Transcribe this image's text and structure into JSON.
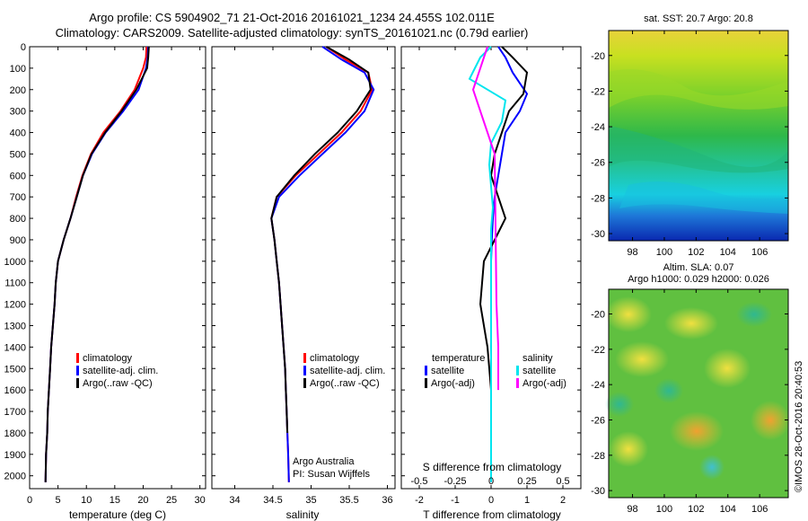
{
  "header": {
    "line1": "Argo profile: CS 5904902_71 21-Oct-2016 20161021_1234 24.455S 102.011E",
    "line2": "Climatology: CARS2009. Satellite-adjusted climatology: synTS_20161021.nc (0.79d earlier)"
  },
  "colors": {
    "climatology": "#ff0000",
    "satellite": "#0000ff",
    "argo": "#000000",
    "sal_satellite": "#00e5ee",
    "sal_argo": "#ff00ff"
  },
  "chart_data": [
    {
      "type": "line",
      "panel": "temperature",
      "xlabel": "temperature (deg C)",
      "ylabel": "",
      "xlim": [
        0,
        31
      ],
      "ylim": [
        2060,
        0
      ],
      "y_inverted": true,
      "xticks": [
        0,
        5,
        10,
        15,
        20,
        25,
        30
      ],
      "yticks": [
        0,
        100,
        200,
        300,
        400,
        500,
        600,
        700,
        800,
        900,
        1000,
        1100,
        1200,
        1300,
        1400,
        1500,
        1600,
        1700,
        1800,
        1900,
        2000
      ],
      "legend": [
        "climatology",
        "satellite-adj. clim.",
        "Argo(..raw -QC)"
      ],
      "series": [
        {
          "name": "climatology",
          "color": "#ff0000",
          "x": [
            20.6,
            20.5,
            20.0,
            18.5,
            16.0,
            13.0,
            10.8,
            9.3,
            8.2,
            7.2,
            6.0,
            5.0,
            4.6,
            4.4,
            4.1,
            3.8,
            3.6,
            3.4,
            3.2,
            3.1,
            2.9,
            2.8
          ],
          "y": [
            0,
            50,
            100,
            200,
            300,
            400,
            500,
            600,
            700,
            800,
            900,
            1000,
            1100,
            1200,
            1300,
            1400,
            1500,
            1600,
            1700,
            1800,
            1900,
            2030
          ]
        },
        {
          "name": "satellite-adj. clim.",
          "color": "#0000ff",
          "x": [
            20.9,
            20.8,
            20.5,
            19.2,
            16.5,
            13.4,
            11.0,
            9.4,
            8.3,
            7.2,
            6.0,
            5.0,
            4.6,
            4.4,
            4.1,
            3.8,
            3.6,
            3.4,
            3.2,
            3.1,
            2.9,
            2.8
          ],
          "y": [
            0,
            50,
            100,
            200,
            300,
            400,
            500,
            600,
            700,
            800,
            900,
            1000,
            1100,
            1200,
            1300,
            1400,
            1500,
            1600,
            1700,
            1800,
            1900,
            2030
          ]
        },
        {
          "name": "Argo(..raw -QC)",
          "color": "#000000",
          "x": [
            21.0,
            20.9,
            20.7,
            18.8,
            16.2,
            13.3,
            10.9,
            9.4,
            8.3,
            7.2,
            6.0,
            5.0,
            4.6,
            4.4,
            4.1,
            3.8,
            3.6,
            3.4,
            3.2,
            3.1,
            2.9,
            2.8
          ],
          "y": [
            0,
            50,
            100,
            200,
            300,
            400,
            500,
            600,
            700,
            800,
            900,
            1000,
            1100,
            1200,
            1300,
            1400,
            1500,
            1600,
            1700,
            1800,
            1900,
            2030
          ]
        }
      ]
    },
    {
      "type": "line",
      "panel": "salinity",
      "xlabel": "salinity",
      "ylabel": "",
      "xlim": [
        33.7,
        36.1
      ],
      "ylim": [
        2060,
        0
      ],
      "y_inverted": true,
      "xticks": [
        34,
        34.5,
        35,
        35.5,
        36
      ],
      "legend": [
        "climatology",
        "satellite-adj. clim.",
        "Argo(..raw -QC)"
      ],
      "annotation": [
        "Argo Australia",
        "PI: Susan Wijffels"
      ],
      "series": [
        {
          "name": "climatology",
          "color": "#ff0000",
          "x": [
            35.2,
            35.45,
            35.75,
            35.8,
            35.65,
            35.4,
            35.1,
            34.8,
            34.55,
            34.48,
            34.52,
            34.55,
            34.58,
            34.6,
            34.62,
            34.64,
            34.66,
            34.67,
            34.68,
            34.69,
            34.7,
            34.71
          ],
          "y": [
            0,
            60,
            120,
            200,
            300,
            400,
            500,
            600,
            700,
            800,
            900,
            1000,
            1100,
            1200,
            1300,
            1400,
            1500,
            1600,
            1700,
            1800,
            1900,
            2030
          ]
        },
        {
          "name": "satellite-adj. clim.",
          "color": "#0000ff",
          "x": [
            35.15,
            35.4,
            35.7,
            35.82,
            35.7,
            35.45,
            35.15,
            34.85,
            34.58,
            34.48,
            34.52,
            34.55,
            34.58,
            34.6,
            34.62,
            34.64,
            34.66,
            34.67,
            34.68,
            34.69,
            34.7,
            34.71
          ],
          "y": [
            0,
            60,
            120,
            200,
            300,
            400,
            500,
            600,
            700,
            800,
            900,
            1000,
            1100,
            1200,
            1300,
            1400,
            1500,
            1600,
            1700,
            1800,
            1900,
            2030
          ]
        },
        {
          "name": "Argo(..raw -QC)",
          "color": "#000000",
          "x": [
            35.2,
            35.5,
            35.75,
            35.78,
            35.6,
            35.35,
            35.05,
            34.78,
            34.55,
            34.48,
            34.52,
            34.55,
            34.58,
            34.6,
            34.62,
            34.64,
            34.66,
            34.67,
            34.68,
            34.69
          ],
          "y": [
            0,
            60,
            120,
            200,
            300,
            400,
            500,
            600,
            700,
            800,
            900,
            1000,
            1100,
            1200,
            1300,
            1400,
            1500,
            1600,
            1700,
            1800
          ]
        }
      ]
    },
    {
      "type": "line",
      "panel": "difference",
      "xlabel": "T difference from climatology",
      "xlabel_top": "S difference from climatology",
      "xlim": [
        -2.5,
        2.5
      ],
      "ylim": [
        2060,
        0
      ],
      "y_inverted": true,
      "xticks": [
        -2,
        -1,
        0,
        1,
        2
      ],
      "xticks_top": [
        "-0.5",
        "-0.25",
        "0",
        "0.25",
        "0.5"
      ],
      "legend_groups": [
        {
          "title": "temperature",
          "items": [
            "satellite",
            "Argo(-adj)"
          ]
        },
        {
          "title": "salinity",
          "items": [
            "satellite",
            "Argo(-adj)"
          ]
        }
      ],
      "series": [
        {
          "name": "temperature satellite",
          "color": "#0000ff",
          "x": [
            0.2,
            0.4,
            0.6,
            1.0,
            0.8,
            0.4,
            0.3,
            0.2,
            0.1,
            0.05,
            0.02,
            0.0,
            0.0,
            0.0,
            0.0,
            0.0
          ],
          "y": [
            0,
            50,
            120,
            220,
            300,
            400,
            500,
            600,
            700,
            800,
            900,
            1000,
            1200,
            1500,
            1800,
            2030
          ]
        },
        {
          "name": "temperature Argo(-adj)",
          "color": "#000000",
          "x": [
            0.3,
            0.6,
            1.0,
            0.9,
            0.5,
            0.3,
            0.1,
            0.0,
            0.2,
            0.4,
            0.1,
            -0.2,
            -0.3,
            -0.1,
            0.0,
            0.0
          ],
          "y": [
            0,
            50,
            120,
            220,
            300,
            400,
            500,
            600,
            700,
            800,
            900,
            1000,
            1200,
            1400,
            1600,
            1800
          ]
        },
        {
          "name": "salinity satellite",
          "color": "#00e5ee",
          "x": [
            0.0,
            -0.3,
            -0.6,
            0.4,
            0.3,
            0.0,
            -0.05,
            0.0,
            0.05,
            0.0,
            0.0,
            0.0,
            0.0,
            0.0,
            0.0,
            0.0
          ],
          "y": [
            0,
            50,
            150,
            250,
            350,
            450,
            550,
            650,
            750,
            850,
            1000,
            1200,
            1400,
            1600,
            1800,
            2030
          ]
        },
        {
          "name": "salinity Argo(-adj)",
          "color": "#ff00ff",
          "x": [
            -0.1,
            -0.3,
            -0.5,
            -0.3,
            -0.1,
            0.1,
            0.15,
            0.2,
            0.2
          ],
          "y": [
            0,
            100,
            200,
            300,
            400,
            500,
            1200,
            1400,
            1600
          ]
        }
      ]
    },
    {
      "type": "heatmap",
      "panel": "sst-map",
      "title": "sat. SST: 20.7 Argo: 20.8",
      "xlim": [
        96.5,
        107.8
      ],
      "ylim": [
        -30.4,
        -18.6
      ],
      "xticks": [
        98,
        100,
        102,
        104,
        106
      ],
      "yticks": [
        -20,
        -22,
        -24,
        -26,
        -28,
        -30
      ]
    },
    {
      "type": "heatmap",
      "panel": "sla-map",
      "title": [
        "Altim. SLA: 0.07",
        "Argo h1000: 0.029 h2000: 0.026"
      ],
      "xlim": [
        96.5,
        107.8
      ],
      "ylim": [
        -30.4,
        -18.6
      ],
      "xticks": [
        98,
        100,
        102,
        104,
        106
      ],
      "yticks": [
        -20,
        -22,
        -24,
        -26,
        -28,
        -30
      ]
    }
  ],
  "credit": "©IMOS 28-Oct-2016 20:40:53"
}
